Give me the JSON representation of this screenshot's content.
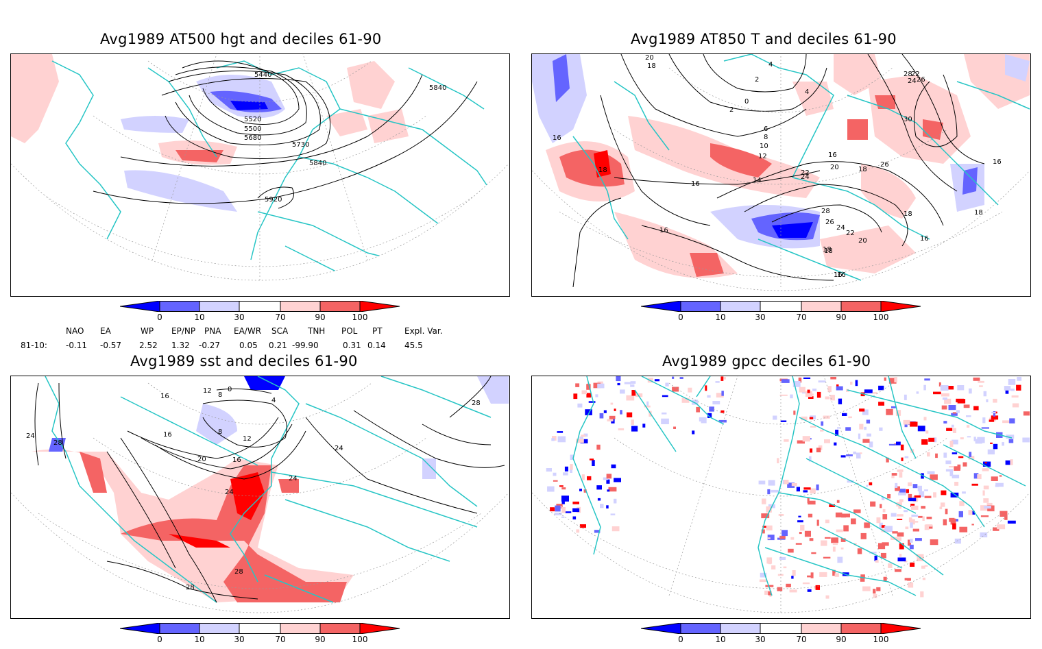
{
  "panels": [
    {
      "id": "p1",
      "title": "Avg1989 AT500 hgt and deciles 61-90",
      "contour_labels": [
        "5440",
        "5520",
        "5500",
        "5680",
        "5730",
        "5840",
        "5840",
        "5920"
      ]
    },
    {
      "id": "p2",
      "title": "Avg1989 AT850 T and deciles 61-90",
      "contour_labels": [
        "20",
        "18",
        "16",
        "4",
        "2",
        "0",
        "2",
        "4",
        "6",
        "8",
        "10",
        "12",
        "14",
        "16",
        "18",
        "20",
        "22",
        "24",
        "26",
        "28",
        "30",
        "22",
        "24",
        "26",
        "16",
        "18",
        "16",
        "18",
        "16",
        "18",
        "16",
        "18",
        "16",
        "28",
        "26",
        "24",
        "22",
        "20",
        "18",
        "16"
      ]
    },
    {
      "id": "p3",
      "title": "Avg1989 sst and deciles 61-90",
      "contour_labels": [
        "24",
        "28",
        "16",
        "12",
        "8",
        "4",
        "0",
        "16",
        "20",
        "16",
        "12",
        "8",
        "24",
        "28",
        "24",
        "28",
        "24",
        "28"
      ]
    },
    {
      "id": "p4",
      "title": "Avg1989 gpcc deciles 61-90",
      "contour_labels": []
    }
  ],
  "colorbar": {
    "ticks": [
      "0",
      "10",
      "30",
      "70",
      "90",
      "100"
    ],
    "colors": {
      "deep_blue": "#0000ff",
      "mid_blue": "#6464ff",
      "light_blue": "#d2d2ff",
      "white": "#ffffff",
      "light_red": "#ffd2d2",
      "mid_red": "#f46464",
      "deep_red": "#ff0000"
    }
  },
  "indices": {
    "row_label": "81-10:",
    "columns": [
      {
        "name": "NAO",
        "value": "-0.11"
      },
      {
        "name": "EA",
        "value": "-0.57"
      },
      {
        "name": "WP",
        "value": "2.52"
      },
      {
        "name": "EP/NP",
        "value": "1.32"
      },
      {
        "name": "PNA",
        "value": "-0.27"
      },
      {
        "name": "EA/WR",
        "value": "0.05"
      },
      {
        "name": "SCA",
        "value": "0.21"
      },
      {
        "name": "TNH",
        "value": "-99.90"
      },
      {
        "name": "POL",
        "value": "0.31"
      },
      {
        "name": "PT",
        "value": "0.14"
      },
      {
        "name": "Expl. Var.",
        "value": "45.5"
      }
    ]
  },
  "map_colors": {
    "coast": "#26c5c5",
    "grid": "#9a9a9a",
    "contour": "#000000"
  }
}
